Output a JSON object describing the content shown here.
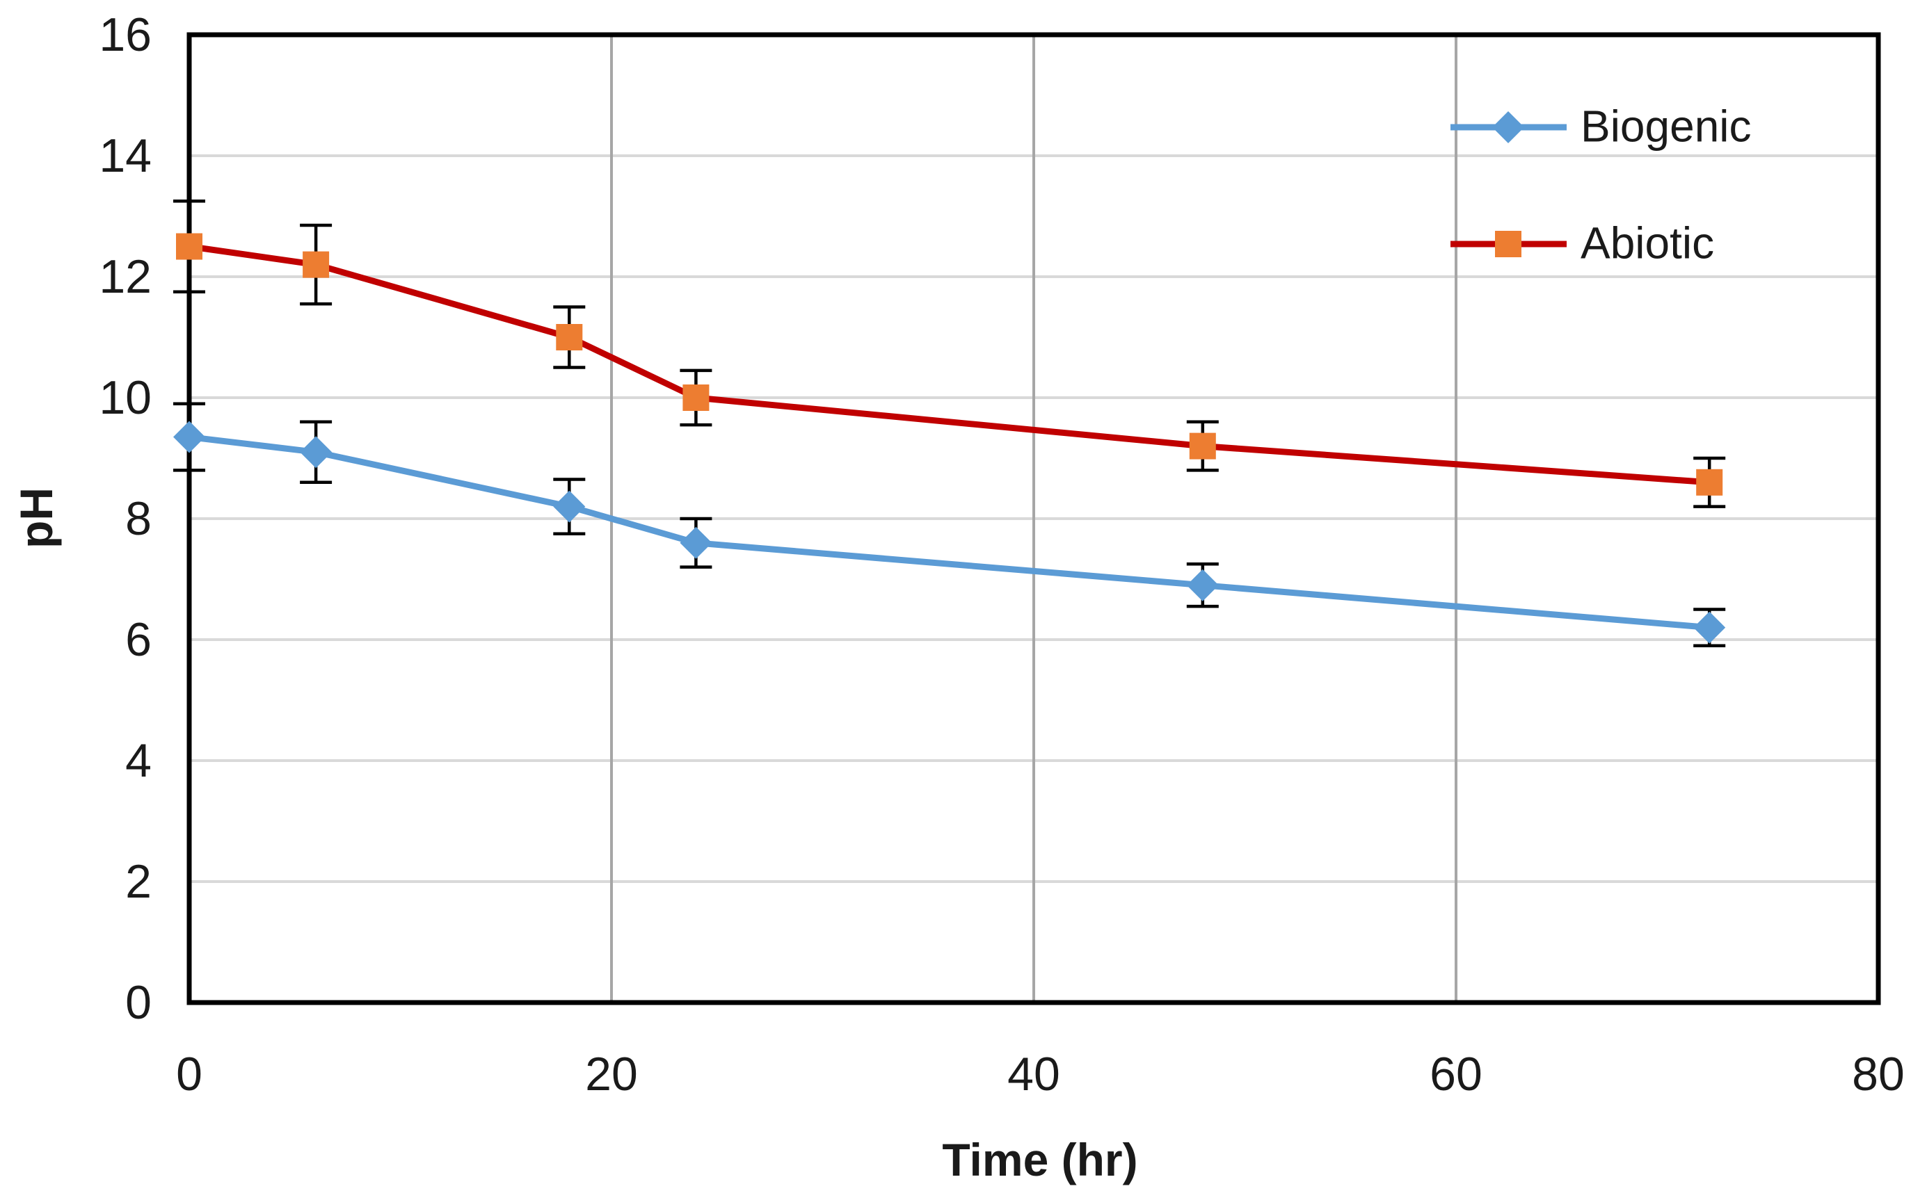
{
  "chart_data": {
    "type": "line",
    "title": "",
    "xlabel": "Time (hr)",
    "ylabel": "pH",
    "x": [
      0,
      6,
      18,
      24,
      48,
      72
    ],
    "series": [
      {
        "name": "Biogenic",
        "marker": "diamond",
        "marker_color": "#5B9BD5",
        "line_color": "#5B9BD5",
        "values": [
          9.35,
          9.1,
          8.2,
          7.6,
          6.9,
          6.2
        ],
        "errors": [
          0.55,
          0.5,
          0.45,
          0.4,
          0.35,
          0.3
        ]
      },
      {
        "name": "Abiotic",
        "marker": "square",
        "marker_color": "#ED7D31",
        "line_color": "#C00000",
        "values": [
          12.5,
          12.2,
          11.0,
          10.0,
          9.2,
          8.6
        ],
        "errors": [
          0.75,
          0.65,
          0.5,
          0.45,
          0.4,
          0.4
        ]
      }
    ],
    "xlim": [
      0,
      80
    ],
    "ylim": [
      0,
      16
    ],
    "x_ticks": [
      0,
      20,
      40,
      60,
      80
    ],
    "y_ticks": [
      0,
      2,
      4,
      6,
      8,
      10,
      12,
      14,
      16
    ],
    "grid": {
      "horizontal_color": "#D9D9D9",
      "vertical_color": "#A6A6A6",
      "horizontal_on": true,
      "vertical_on": true
    },
    "frame_color": "#000000",
    "error_bar_color": "#000000",
    "tick_label_color": "#1a1a1a",
    "legend_position": "top-right-inside"
  }
}
